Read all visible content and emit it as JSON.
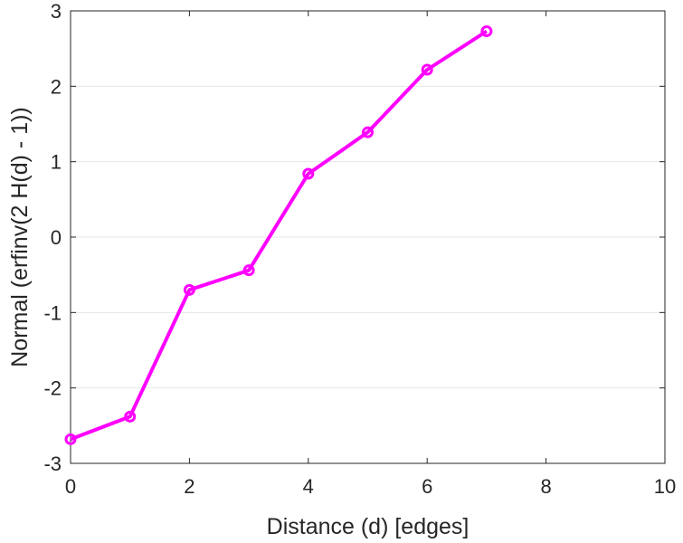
{
  "chart_data": {
    "type": "line",
    "title": "",
    "xlabel": "Distance (d) [edges]",
    "ylabel": "Normal (erfinv(2 H(d) - 1))",
    "xlim": [
      0,
      10
    ],
    "ylim": [
      -3,
      3
    ],
    "x_ticks": [
      0,
      2,
      4,
      6,
      8,
      10
    ],
    "y_ticks": [
      -3,
      -2,
      -1,
      0,
      1,
      2,
      3
    ],
    "grid": "horizontal",
    "series": [
      {
        "color": "#ff00ff",
        "marker": "circle",
        "x": [
          0,
          1,
          2,
          3,
          4,
          5,
          6,
          7
        ],
        "y": [
          -2.68,
          -2.38,
          -0.7,
          -0.44,
          0.84,
          1.39,
          2.22,
          2.73
        ]
      }
    ]
  }
}
